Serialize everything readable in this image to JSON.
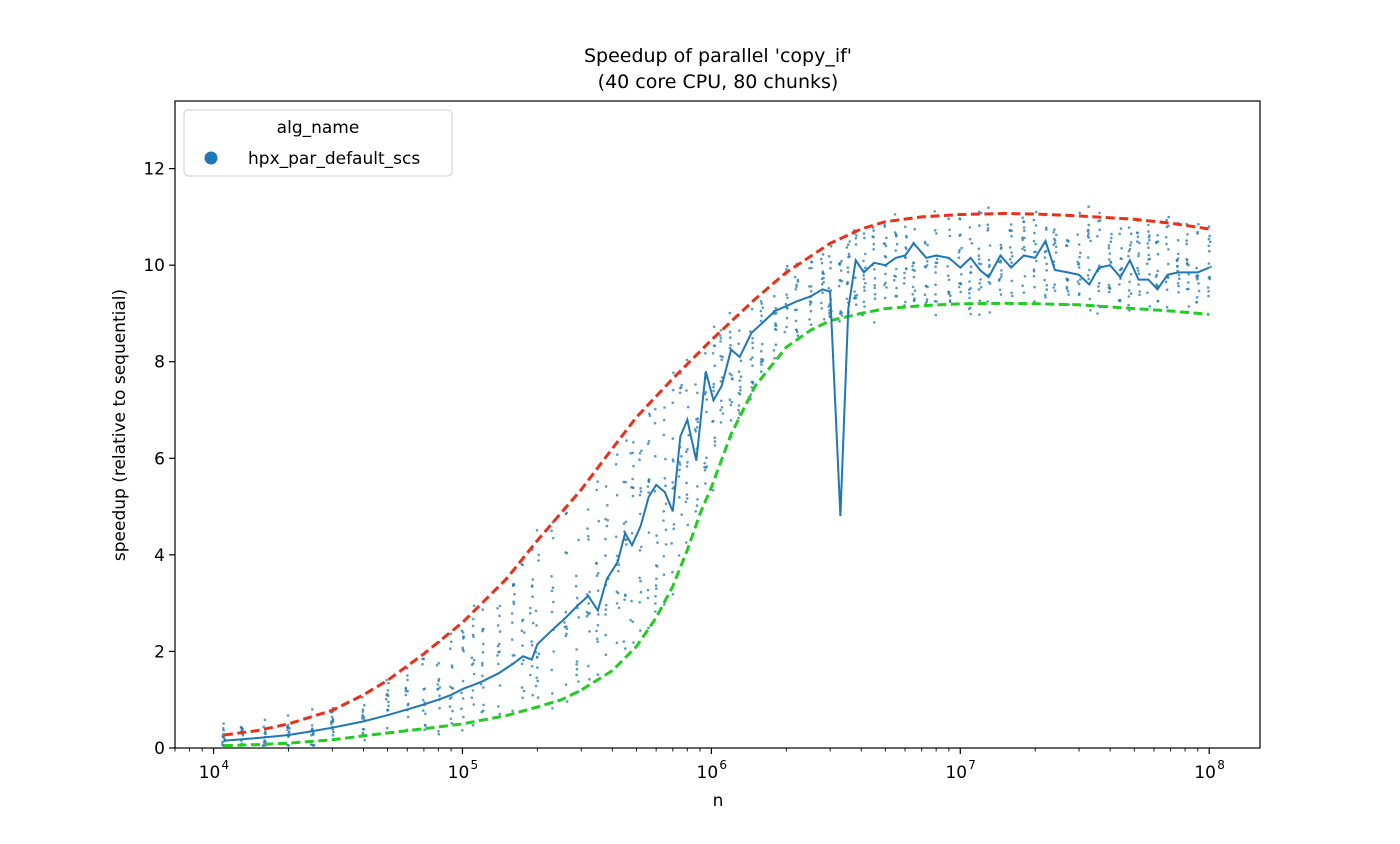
{
  "chart_data": {
    "type": "scatter",
    "title": "Speedup of parallel 'copy_if'",
    "subtitle": "(40 core CPU, 80 chunks)",
    "xlabel": "n",
    "ylabel": "speedup (relative to sequential)",
    "x_scale": "log",
    "xlim": [
      7000,
      160000000
    ],
    "ylim": [
      0,
      13.4
    ],
    "x_ticks": [
      {
        "value": 10000,
        "base": "10",
        "exp": "4"
      },
      {
        "value": 100000,
        "base": "10",
        "exp": "5"
      },
      {
        "value": 1000000,
        "base": "10",
        "exp": "6"
      },
      {
        "value": 10000000,
        "base": "10",
        "exp": "7"
      },
      {
        "value": 100000000,
        "base": "10",
        "exp": "8"
      }
    ],
    "y_ticks": [
      0,
      2,
      4,
      6,
      8,
      10,
      12
    ],
    "grid": false,
    "legend": {
      "placement": "top-left",
      "title": "alg_name",
      "entries": [
        {
          "label": "hpx_par_default_scs",
          "color": "#1f77b4",
          "marker": "circle"
        }
      ]
    },
    "series": [
      {
        "name": "hpx_par_default_scs",
        "kind": "mean-line",
        "color": "#1f77b4",
        "x": [
          11000,
          13000,
          16000,
          20000,
          25000,
          30000,
          40000,
          50000,
          60000,
          70000,
          80000,
          90000,
          100000,
          110000,
          120000,
          140000,
          160000,
          175000,
          190000,
          200000,
          230000,
          260000,
          290000,
          320000,
          350000,
          380000,
          420000,
          450000,
          480000,
          520000,
          560000,
          600000,
          650000,
          700000,
          750000,
          800000,
          870000,
          950000,
          1020000,
          1100000,
          1200000,
          1300000,
          1450000,
          1600000,
          1800000,
          2000000,
          2200000,
          2500000,
          2800000,
          3000000,
          3300000,
          3550000,
          3800000,
          4100000,
          4500000,
          5000000,
          5500000,
          6000000,
          6500000,
          7300000,
          8000000,
          9000000,
          10000000,
          11000000,
          12000000,
          13000000,
          14500000,
          16000000,
          18000000,
          20000000,
          22000000,
          24000000,
          27000000,
          30000000,
          33000000,
          36000000,
          40000000,
          44000000,
          48000000,
          52000000,
          57000000,
          62000000,
          68000000,
          75000000,
          82000000,
          90000000,
          100000000
        ],
        "y": [
          0.15,
          0.18,
          0.22,
          0.27,
          0.35,
          0.42,
          0.55,
          0.68,
          0.8,
          0.9,
          1.0,
          1.1,
          1.22,
          1.3,
          1.38,
          1.55,
          1.75,
          1.9,
          1.83,
          2.15,
          2.45,
          2.7,
          2.95,
          3.15,
          2.85,
          3.5,
          3.85,
          4.45,
          4.2,
          4.6,
          5.2,
          5.45,
          5.3,
          4.9,
          6.45,
          6.8,
          5.95,
          7.8,
          7.2,
          7.5,
          8.25,
          8.1,
          8.6,
          8.8,
          9.05,
          9.15,
          9.25,
          9.35,
          9.5,
          9.45,
          4.8,
          9.1,
          10.1,
          9.85,
          10.05,
          10.0,
          10.15,
          10.2,
          10.45,
          10.15,
          10.2,
          10.15,
          9.95,
          10.15,
          9.9,
          9.75,
          10.2,
          9.95,
          10.2,
          10.15,
          10.5,
          9.9,
          9.85,
          9.8,
          9.6,
          9.95,
          10.0,
          9.75,
          10.1,
          9.7,
          9.7,
          9.5,
          9.8,
          9.85,
          9.85,
          9.85,
          9.95
        ]
      },
      {
        "name": "",
        "kind": "upper-fit",
        "style": "dashed",
        "color": "#e8301a",
        "x": [
          11000,
          15000,
          20000,
          30000,
          40000,
          50000,
          70000,
          100000,
          150000,
          200000,
          300000,
          400000,
          500000,
          700000,
          1000000,
          1500000,
          2000000,
          3000000,
          4000000,
          5000000,
          7000000,
          10000000,
          15000000,
          20000000,
          30000000,
          50000000,
          70000000,
          100000000
        ],
        "y": [
          0.27,
          0.36,
          0.5,
          0.78,
          1.1,
          1.4,
          1.95,
          2.6,
          3.5,
          4.3,
          5.35,
          6.2,
          6.85,
          7.65,
          8.45,
          9.3,
          9.85,
          10.45,
          10.75,
          10.9,
          11.0,
          11.05,
          11.07,
          11.06,
          11.02,
          10.95,
          10.87,
          10.75
        ]
      },
      {
        "name": "",
        "kind": "lower-fit",
        "style": "dashed",
        "color": "#22cc22",
        "x": [
          11000,
          15000,
          20000,
          30000,
          40000,
          50000,
          70000,
          100000,
          150000,
          200000,
          250000,
          300000,
          400000,
          500000,
          600000,
          700000,
          800000,
          900000,
          1000000,
          1200000,
          1500000,
          2000000,
          2500000,
          3000000,
          4000000,
          5000000,
          7000000,
          10000000,
          15000000,
          20000000,
          30000000,
          50000000,
          70000000,
          100000000
        ],
        "y": [
          0.05,
          0.07,
          0.1,
          0.17,
          0.25,
          0.31,
          0.4,
          0.5,
          0.67,
          0.85,
          1.0,
          1.2,
          1.6,
          2.1,
          2.7,
          3.35,
          4.1,
          4.85,
          5.4,
          6.5,
          7.5,
          8.3,
          8.65,
          8.85,
          9.0,
          9.1,
          9.16,
          9.2,
          9.21,
          9.2,
          9.18,
          9.1,
          9.05,
          8.98
        ]
      }
    ]
  }
}
